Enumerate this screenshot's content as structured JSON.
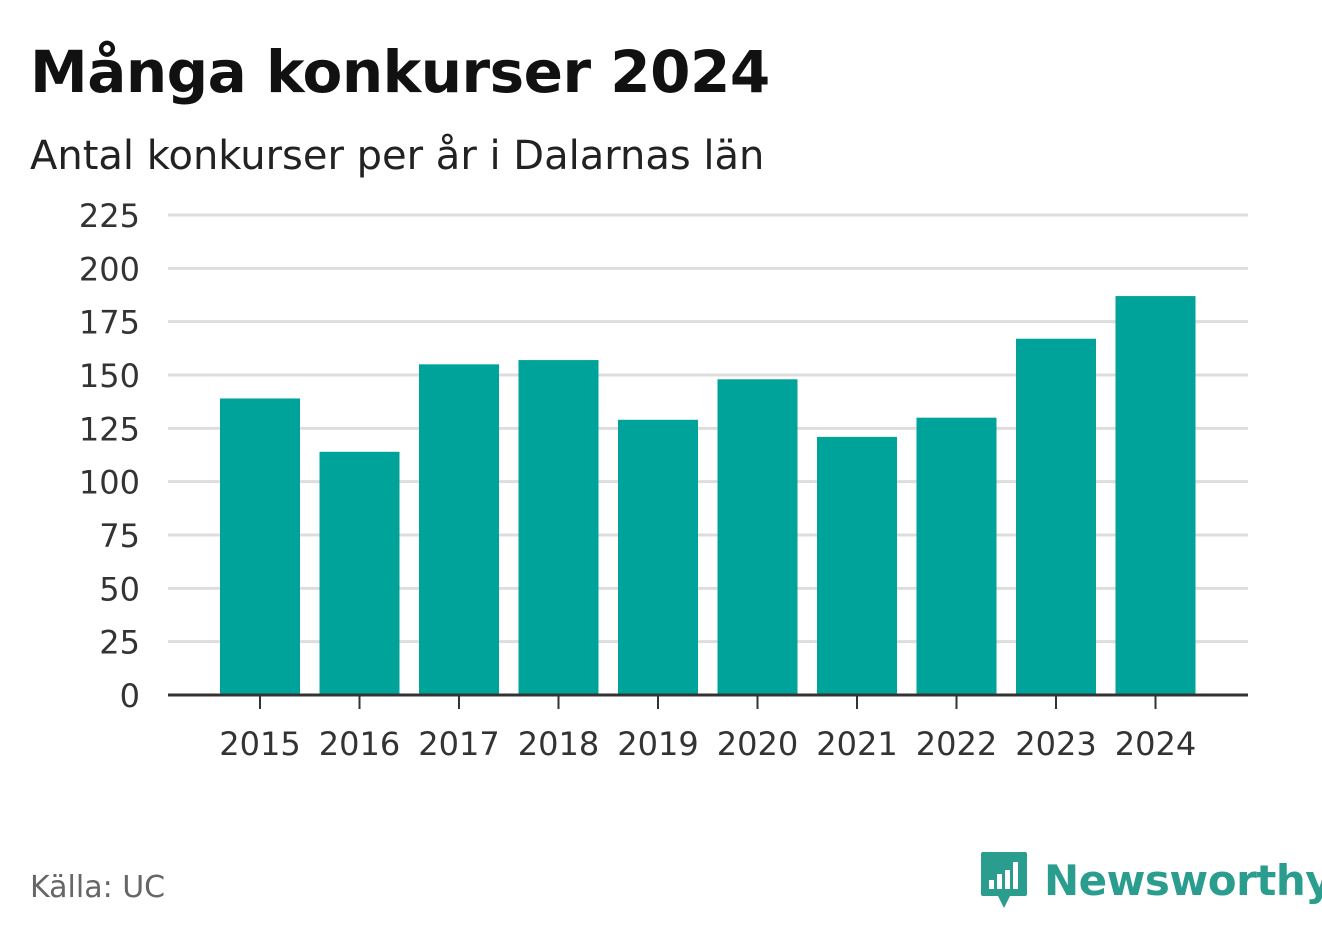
{
  "header": {
    "title": "Många konkurser 2024",
    "subtitle": "Antal konkurser per år i Dalarnas län"
  },
  "footer": {
    "source": "Källa: UC",
    "brand": "Newsworthy"
  },
  "colors": {
    "bar": "#00a39a",
    "grid": "#dddddd",
    "axis": "#333333",
    "brand": "#2a9d8f"
  },
  "chart_data": {
    "type": "bar",
    "categories": [
      "2015",
      "2016",
      "2017",
      "2018",
      "2019",
      "2020",
      "2021",
      "2022",
      "2023",
      "2024"
    ],
    "values": [
      139,
      114,
      155,
      157,
      129,
      148,
      121,
      130,
      167,
      187
    ],
    "title": "Många konkurser 2024",
    "subtitle": "Antal konkurser per år i Dalarnas län",
    "xlabel": "",
    "ylabel": "",
    "ylim": [
      0,
      225
    ],
    "yticks": [
      "0",
      "25",
      "50",
      "75",
      "100",
      "125",
      "150",
      "175",
      "200",
      "225"
    ],
    "grid": true,
    "legend": "none"
  }
}
